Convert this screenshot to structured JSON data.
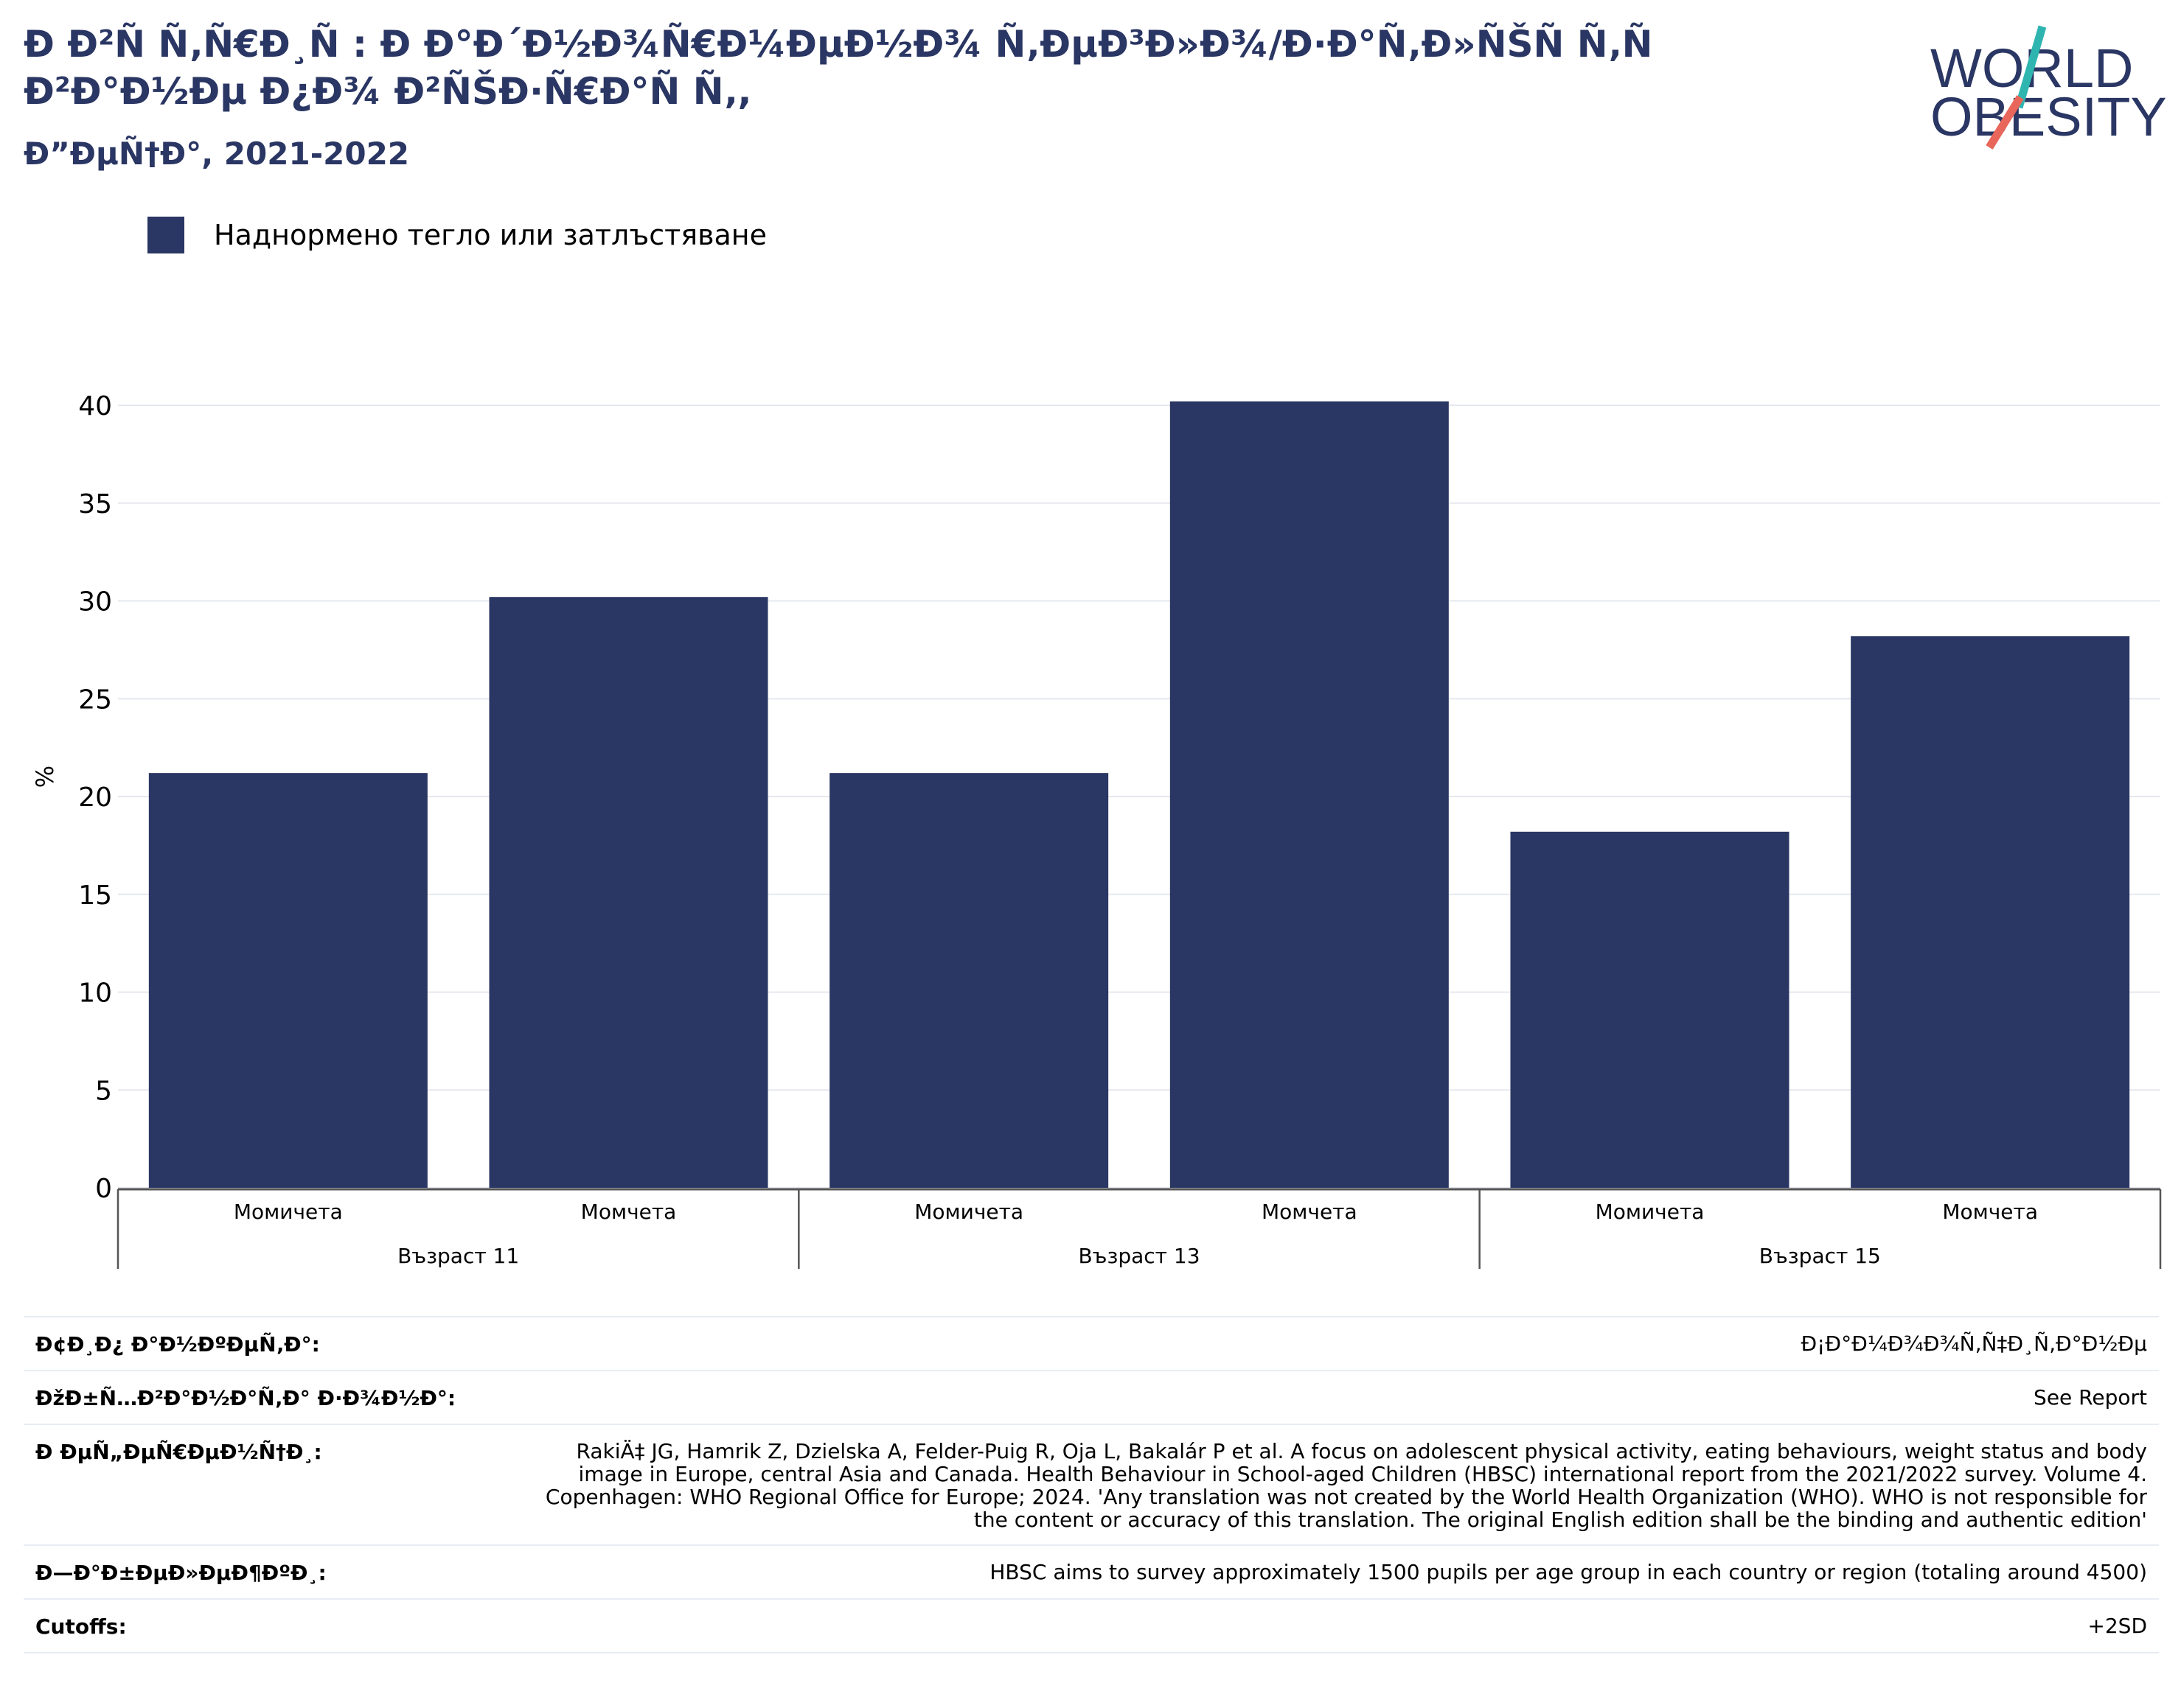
{
  "header": {
    "title": "Ð Ð²Ñ Ñ‚Ñ€Ð¸Ñ : Ð Ð°Ð´Ð½Ð¾Ñ€Ð¼ÐµÐ½Ð¾ Ñ‚ÐµÐ³Ð»Ð¾/Ð·Ð°Ñ‚Ð»ÑŠÑ Ñ‚Ñ Ð²Ð°Ð½Ðµ Ð¿Ð¾ Ð²ÑŠÐ·Ñ€Ð°Ñ Ñ‚,",
    "subtitle": "Ð”ÐµÑ†Ð°, 2021-2022"
  },
  "logo": {
    "line1": "WORLD",
    "line2": "OBESITY",
    "colors": {
      "navy": "#2a3663",
      "teal": "#2fb5b0",
      "coral": "#e8665a"
    }
  },
  "chart_data": {
    "type": "bar",
    "categories": [
      "Момичета",
      "Момчета",
      "Момичета",
      "Момчета",
      "Момичета",
      "Момчета"
    ],
    "groups": [
      {
        "label": "Възраст 11",
        "categories": [
          "Момичета",
          "Момчета"
        ]
      },
      {
        "label": "Възраст 13",
        "categories": [
          "Момичета",
          "Момчета"
        ]
      },
      {
        "label": "Възраст 15",
        "categories": [
          "Момичета",
          "Момчета"
        ]
      }
    ],
    "series": [
      {
        "name": "Наднормено тегло или затлъстяване",
        "color": "#2a3663",
        "values": [
          21.2,
          30.2,
          21.2,
          40.2,
          18.2,
          28.2
        ]
      }
    ],
    "xlabel": "",
    "ylabel": "%",
    "ylim": [
      0,
      40
    ],
    "yticks": [
      0,
      5,
      10,
      15,
      20,
      25,
      30,
      35,
      40
    ],
    "grid": true,
    "legend_position": "top-left"
  },
  "meta": [
    {
      "label": "Ð¢Ð¸Ð¿ Ð°Ð½ÐºÐµÑ‚Ð°:",
      "value": "Ð¡Ð°Ð¼Ð¾Ð¾Ñ‚Ñ‡Ð¸Ñ‚Ð°Ð½Ðµ"
    },
    {
      "label": "ÐžÐ±Ñ…Ð²Ð°Ð½Ð°Ñ‚Ð° Ð·Ð¾Ð½Ð°:",
      "value": "See Report"
    },
    {
      "label": "Ð ÐµÑ„ÐµÑ€ÐµÐ½Ñ†Ð¸:",
      "value": "RakiÄ‡ JG, Hamrik Z, Dzielska A, Felder-Puig R, Oja L, Bakalár P et al. A focus on adolescent physical activity, eating behaviours, weight status and body image in Europe, central Asia and Canada. Health Behaviour in School-aged Children (HBSC) international report from the 2021/2022 survey. Volume 4. Copenhagen: WHO Regional Office for Europe; 2024. 'Any translation was not created by the World Health Organization (WHO). WHO is not responsible for the content or accuracy of this translation. The original English edition shall be the binding and authentic edition'"
    },
    {
      "label": "Ð—Ð°Ð±ÐµÐ»ÐµÐ¶ÐºÐ¸:",
      "value": "HBSC aims to survey approximately 1500 pupils per age group in each country or region (totaling around 4500)"
    },
    {
      "label": "Cutoffs:",
      "value": "+2SD"
    }
  ]
}
